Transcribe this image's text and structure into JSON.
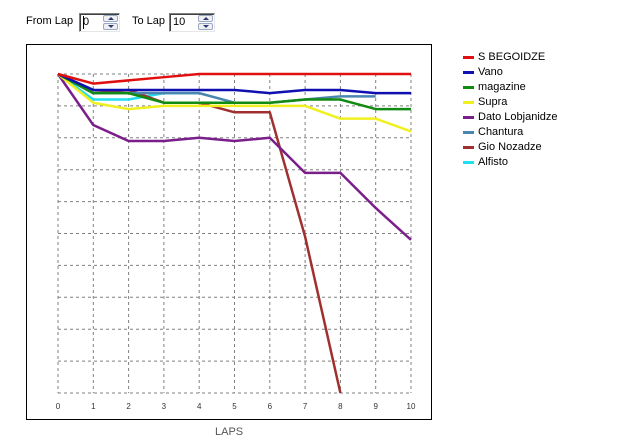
{
  "controls": {
    "from_label": "From Lap",
    "from_value": "0",
    "to_label": "To Lap",
    "to_value": "10"
  },
  "chart_data": {
    "type": "line",
    "x": [
      0,
      1,
      2,
      3,
      4,
      5,
      6,
      7,
      8,
      9,
      10
    ],
    "xlabel": "LAPS",
    "ylabel": "",
    "ylim": [
      0,
      10
    ],
    "grid": true,
    "legend": "right",
    "series": [
      {
        "name": "S BEGOIDZE",
        "color": "#e01010",
        "values": [
          10,
          9.7,
          9.8,
          9.9,
          10,
          10,
          10,
          10,
          10,
          10,
          10
        ]
      },
      {
        "name": "Vano",
        "color": "#1010b0",
        "values": [
          10,
          9.5,
          9.5,
          9.5,
          9.5,
          9.5,
          9.4,
          9.5,
          9.5,
          9.4,
          9.4
        ]
      },
      {
        "name": "magazine",
        "color": "#108a10",
        "values": [
          10,
          9.4,
          9.4,
          9.1,
          9.1,
          9.1,
          9.1,
          9.2,
          9.2,
          8.9,
          8.9
        ]
      },
      {
        "name": "Supra",
        "color": "#f0f020",
        "values": [
          10,
          9.1,
          8.9,
          9.0,
          9.0,
          9.0,
          9.0,
          9.0,
          8.6,
          8.6,
          8.2
        ]
      },
      {
        "name": "Dato Lobjanidze",
        "color": "#7a1f8a",
        "values": [
          10,
          8.4,
          7.9,
          7.9,
          8.0,
          7.9,
          8.0,
          6.9,
          6.9,
          5.8,
          4.8
        ]
      },
      {
        "name": "Chantura",
        "color": "#4a86b0",
        "values": [
          10,
          9.4,
          9.4,
          9.4,
          9.4,
          9.1,
          9.1,
          9.2,
          9.3,
          9.3,
          null
        ]
      },
      {
        "name": "Gio Nozadze",
        "color": "#a03030",
        "values": [
          10,
          9.4,
          9.5,
          9.1,
          9.1,
          8.8,
          8.8,
          4.9,
          0,
          null,
          null
        ]
      },
      {
        "name": "Alfisto",
        "color": "#20e0f0",
        "values": [
          10,
          9.2,
          9.2,
          9.4,
          9.4,
          null,
          null,
          null,
          null,
          null,
          null
        ]
      }
    ]
  }
}
